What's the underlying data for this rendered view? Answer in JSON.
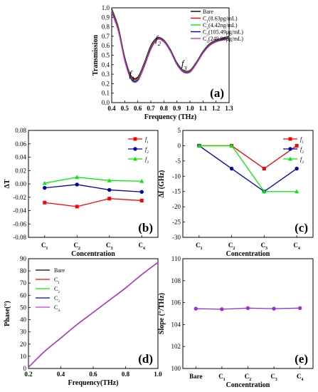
{
  "chart_data": [
    {
      "panel": "(a)",
      "type": "line",
      "xlabel": "Frequency (THz)",
      "ylabel": "Transmission",
      "xlim": [
        0.4,
        1.3
      ],
      "ylim": [
        0.0,
        1.0
      ],
      "xticks": [
        "0.4",
        "0.5",
        "0.6",
        "0.7",
        "0.8",
        "0.9",
        "1.0",
        "1.1",
        "1.2",
        "1.3"
      ],
      "yticks": [
        "0.0",
        "0.1",
        "0.2",
        "0.3",
        "0.4",
        "0.5",
        "0.6",
        "0.7",
        "0.8",
        "0.9",
        "1.0"
      ],
      "legend_position": "top-right",
      "annotations": [
        {
          "text": "f",
          "sub": "1",
          "x": 0.555,
          "y": 0.27
        },
        {
          "text": "f",
          "sub": "2",
          "x": 0.755,
          "y": 0.64
        },
        {
          "text": "f",
          "sub": "3",
          "x": 0.955,
          "y": 0.38
        }
      ],
      "series": [
        {
          "name": "Bare",
          "color": "#000000",
          "x": [
            0.4,
            0.45,
            0.5,
            0.55,
            0.6,
            0.65,
            0.7,
            0.75,
            0.8,
            0.85,
            0.9,
            0.95,
            1.0,
            1.05,
            1.1,
            1.15,
            1.2,
            1.25,
            1.3
          ],
          "y": [
            0.99,
            0.8,
            0.48,
            0.28,
            0.27,
            0.42,
            0.6,
            0.685,
            0.66,
            0.56,
            0.42,
            0.34,
            0.34,
            0.43,
            0.54,
            0.62,
            0.66,
            0.68,
            0.7
          ]
        },
        {
          "name": "C1(8.63pg/mL)",
          "name_parts": [
            "C",
            "1",
            "(8.63pg/mL)"
          ],
          "color": "#ff0000",
          "x": [
            0.4,
            0.45,
            0.5,
            0.55,
            0.6,
            0.65,
            0.7,
            0.75,
            0.8,
            0.85,
            0.9,
            0.95,
            1.0,
            1.05,
            1.1,
            1.15,
            1.2,
            1.25,
            1.3
          ],
          "y": [
            0.98,
            0.79,
            0.47,
            0.27,
            0.26,
            0.41,
            0.59,
            0.68,
            0.655,
            0.55,
            0.41,
            0.335,
            0.335,
            0.425,
            0.535,
            0.615,
            0.655,
            0.675,
            0.695
          ]
        },
        {
          "name": "C2(4.42ng/mL)",
          "name_parts": [
            "C",
            "2",
            "(4.42ng/mL)"
          ],
          "color": "#00ee00",
          "x": [
            0.4,
            0.45,
            0.5,
            0.55,
            0.6,
            0.65,
            0.7,
            0.75,
            0.8,
            0.85,
            0.9,
            0.95,
            1.0,
            1.05,
            1.1,
            1.15,
            1.2,
            1.25,
            1.3
          ],
          "y": [
            0.97,
            0.78,
            0.46,
            0.26,
            0.25,
            0.4,
            0.58,
            0.675,
            0.65,
            0.55,
            0.41,
            0.33,
            0.33,
            0.42,
            0.53,
            0.61,
            0.65,
            0.67,
            0.69
          ]
        },
        {
          "name": "C3(105.49μg/mL)",
          "name_parts": [
            "C",
            "3",
            "(105.49μg/mL)"
          ],
          "color": "#0000cc",
          "x": [
            0.4,
            0.45,
            0.5,
            0.55,
            0.6,
            0.65,
            0.7,
            0.75,
            0.8,
            0.85,
            0.9,
            0.95,
            1.0,
            1.05,
            1.1,
            1.15,
            1.2,
            1.25,
            1.3
          ],
          "y": [
            0.96,
            0.77,
            0.45,
            0.25,
            0.24,
            0.39,
            0.57,
            0.67,
            0.645,
            0.545,
            0.405,
            0.325,
            0.325,
            0.415,
            0.525,
            0.605,
            0.645,
            0.665,
            0.685
          ]
        },
        {
          "name": "C4(249.86μg/mL)",
          "name_parts": [
            "C",
            "4",
            "(249.86μg/mL)"
          ],
          "color": "#cc33cc",
          "x": [
            0.4,
            0.45,
            0.5,
            0.55,
            0.6,
            0.65,
            0.7,
            0.75,
            0.8,
            0.85,
            0.9,
            0.95,
            1.0,
            1.05,
            1.1,
            1.15,
            1.2,
            1.25,
            1.3
          ],
          "y": [
            0.95,
            0.76,
            0.44,
            0.24,
            0.23,
            0.38,
            0.56,
            0.665,
            0.64,
            0.54,
            0.4,
            0.32,
            0.32,
            0.41,
            0.52,
            0.6,
            0.64,
            0.66,
            0.68
          ]
        }
      ]
    },
    {
      "panel": "(b)",
      "type": "line",
      "xlabel": "Concentration",
      "ylabel": "ΔT",
      "categories": [
        "C1",
        "C2",
        "C3",
        "C4"
      ],
      "ylim": [
        -0.08,
        0.08
      ],
      "yticks": [
        "-0.08",
        "-0.06",
        "-0.04",
        "-0.02",
        "0.00",
        "0.02",
        "0.04",
        "0.06",
        "0.08"
      ],
      "legend_position": "top-right",
      "series": [
        {
          "name": "f1",
          "color": "#ff0000",
          "marker": "square",
          "values": [
            -0.028,
            -0.034,
            -0.022,
            -0.025
          ]
        },
        {
          "name": "f2",
          "color": "#0000aa",
          "marker": "circle",
          "values": [
            -0.006,
            -0.001,
            -0.009,
            -0.012
          ]
        },
        {
          "name": "f3",
          "color": "#00ee00",
          "marker": "triangle",
          "values": [
            0.001,
            0.01,
            0.005,
            0.004
          ]
        }
      ]
    },
    {
      "panel": "(c)",
      "type": "line",
      "xlabel": "Concentration",
      "ylabel": "Δf (GHz)",
      "categories": [
        "C1",
        "C2",
        "C3",
        "C4"
      ],
      "ylim": [
        -30,
        5
      ],
      "yticks": [
        "-30",
        "-25",
        "-20",
        "-15",
        "-10",
        "-5",
        "0",
        "5"
      ],
      "legend_position": "top-right",
      "series": [
        {
          "name": "f1",
          "color": "#ff0000",
          "marker": "square",
          "values": [
            0,
            0,
            -7.5,
            0
          ]
        },
        {
          "name": "f2",
          "color": "#0000aa",
          "marker": "circle",
          "values": [
            0,
            -7.5,
            -15,
            -7.5
          ]
        },
        {
          "name": "f3",
          "color": "#00ee00",
          "marker": "triangle",
          "values": [
            0,
            0,
            -15,
            -15
          ]
        }
      ]
    },
    {
      "panel": "(d)",
      "type": "line",
      "xlabel": "Frequency(THz)",
      "ylabel": "Phase(°)",
      "xlim": [
        0.2,
        1.0
      ],
      "ylim": [
        0,
        90
      ],
      "xticks": [
        "0.2",
        "0.4",
        "0.6",
        "0.8",
        "1.0"
      ],
      "yticks": [
        "0",
        "10",
        "20",
        "30",
        "40",
        "50",
        "60",
        "70",
        "80",
        "90"
      ],
      "legend_position": "top-left",
      "series": [
        {
          "name": "Bare",
          "color": "#000000",
          "x": [
            0.2,
            0.3,
            0.4,
            0.5,
            0.6,
            0.7,
            0.8,
            0.9,
            1.0
          ],
          "y": [
            1,
            14,
            25,
            36,
            46,
            56,
            66,
            77,
            87
          ]
        },
        {
          "name": "C1",
          "color": "#ff0000",
          "x": [
            0.2,
            0.3,
            0.4,
            0.5,
            0.6,
            0.7,
            0.8,
            0.9,
            1.0
          ],
          "y": [
            1,
            14,
            25,
            36,
            46,
            56,
            66,
            77,
            87
          ]
        },
        {
          "name": "C2",
          "color": "#00ee00",
          "x": [
            0.2,
            0.3,
            0.4,
            0.5,
            0.6,
            0.7,
            0.8,
            0.9,
            1.0
          ],
          "y": [
            1,
            14,
            25,
            36,
            46,
            56,
            66,
            77,
            87
          ]
        },
        {
          "name": "C3",
          "color": "#0000cc",
          "x": [
            0.2,
            0.3,
            0.4,
            0.5,
            0.6,
            0.7,
            0.8,
            0.9,
            1.0
          ],
          "y": [
            1,
            14,
            25,
            36,
            46,
            56,
            66,
            77,
            87
          ]
        },
        {
          "name": "C4",
          "color": "#cc33cc",
          "x": [
            0.2,
            0.3,
            0.4,
            0.5,
            0.6,
            0.7,
            0.8,
            0.9,
            1.0
          ],
          "y": [
            1,
            14,
            25,
            36,
            46,
            56,
            66,
            77,
            87
          ]
        }
      ]
    },
    {
      "panel": "(e)",
      "type": "line",
      "xlabel": "Concentration",
      "ylabel": "Slope (°/THz)",
      "categories": [
        "Bare",
        "C1",
        "C2",
        "C3",
        "C4"
      ],
      "ylim": [
        100,
        110
      ],
      "yticks": [
        "100",
        "102",
        "104",
        "106",
        "108",
        "110"
      ],
      "series": [
        {
          "color": "#9933cc",
          "marker": "circle",
          "values": [
            105.45,
            105.4,
            105.5,
            105.45,
            105.5
          ]
        }
      ]
    }
  ]
}
